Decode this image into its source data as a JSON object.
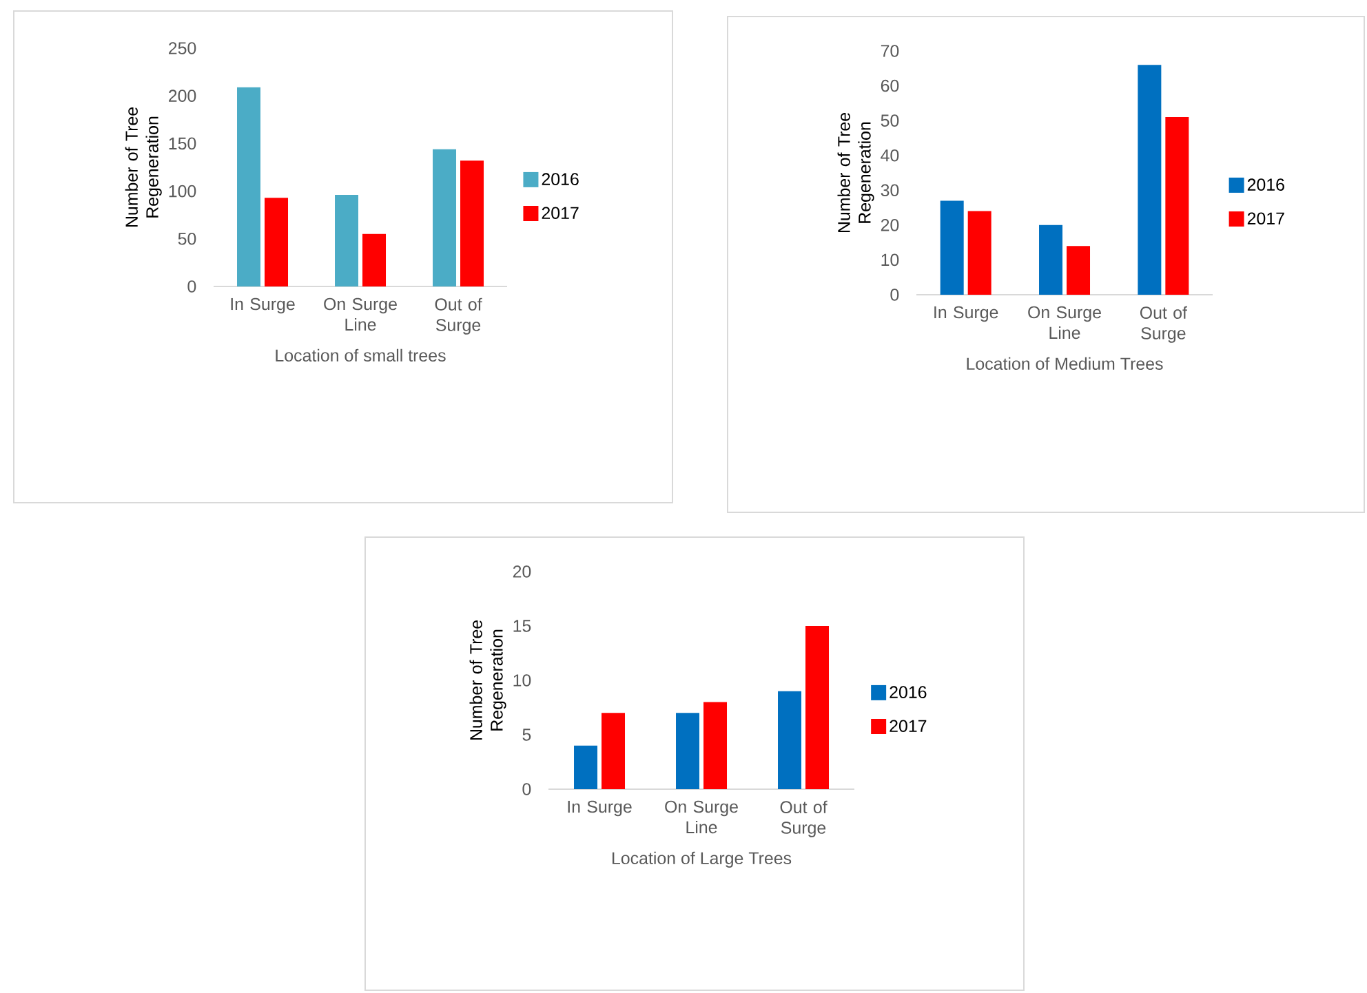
{
  "chart_data": [
    {
      "type": "bar",
      "xlabel": "Location of small trees",
      "ylabel": "Number of Tree Regeneration",
      "categories": [
        "In Surge",
        "On Surge Line",
        "Out of Surge"
      ],
      "ylim": [
        0,
        250
      ],
      "yticks": [
        0,
        50,
        100,
        150,
        200,
        250
      ],
      "legend": "right",
      "series": [
        {
          "name": "2016",
          "color": "#4bacc6",
          "values": [
            209,
            96,
            144
          ]
        },
        {
          "name": "2017",
          "color": "#ff0000",
          "values": [
            93,
            55,
            132
          ]
        }
      ]
    },
    {
      "type": "bar",
      "xlabel": "Location of Medium Trees",
      "ylabel": "Number of Tree Regeneration",
      "categories": [
        "In Surge",
        "On Surge Line",
        "Out of Surge"
      ],
      "ylim": [
        0,
        70
      ],
      "yticks": [
        0,
        10,
        20,
        30,
        40,
        50,
        60,
        70
      ],
      "legend": "right",
      "series": [
        {
          "name": "2016",
          "color": "#0070c0",
          "values": [
            27,
            20,
            66
          ]
        },
        {
          "name": "2017",
          "color": "#ff0000",
          "values": [
            24,
            14,
            51
          ]
        }
      ]
    },
    {
      "type": "bar",
      "xlabel": "Location of Large Trees",
      "ylabel": "Number of Tree Regeneration",
      "categories": [
        "In Surge",
        "On Surge Line",
        "Out of Surge"
      ],
      "ylim": [
        0,
        20
      ],
      "yticks": [
        0,
        5,
        10,
        15,
        20
      ],
      "legend": "right",
      "series": [
        {
          "name": "2016",
          "color": "#0070c0",
          "values": [
            4,
            7,
            9
          ]
        },
        {
          "name": "2017",
          "color": "#ff0000",
          "values": [
            7,
            8,
            15
          ]
        }
      ]
    }
  ]
}
